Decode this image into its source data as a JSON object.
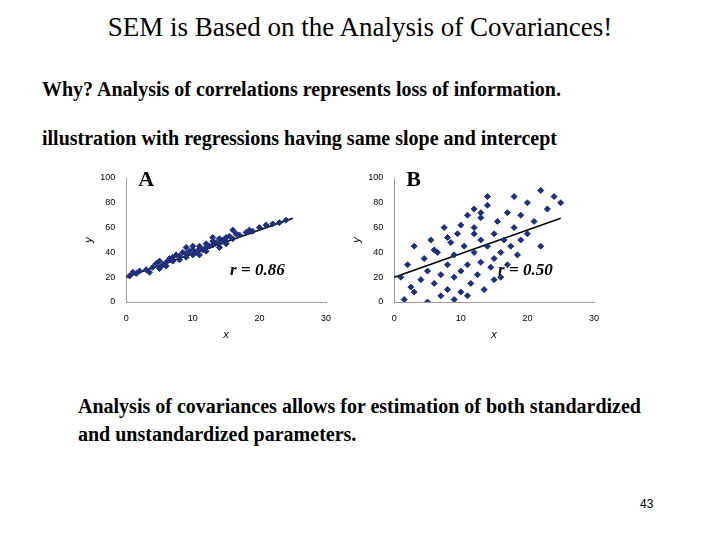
{
  "slide": {
    "title": "SEM is Based on the Analysis of Covariances!",
    "lines": [
      "Why?   Analysis of correlations represents loss of information.",
      "illustration with regressions having same slope and intercept"
    ],
    "note": "Analysis of covariances allows for estimation of both standardized and unstandardized parameters.",
    "page": "43"
  },
  "chart_data": [
    {
      "type": "scatter",
      "title": "A",
      "annotation": "r = 0.86",
      "xlabel": "x",
      "ylabel": "y",
      "xlim": [
        0,
        30
      ],
      "ylim": [
        0,
        100
      ],
      "xticks": [
        0,
        10,
        20,
        30
      ],
      "yticks": [
        0,
        20,
        40,
        60,
        80,
        100
      ],
      "grid": false,
      "series": [
        {
          "type": "scatter",
          "marker": "diamond",
          "color": "#1f2f7a",
          "x": [
            0.5,
            1,
            1.5,
            2,
            3,
            4,
            4.5,
            5,
            5,
            5.5,
            6,
            6.5,
            7,
            7,
            7.5,
            8,
            8,
            8.5,
            9,
            9,
            9.5,
            10,
            10,
            10.5,
            11,
            11,
            11.5,
            12,
            12,
            12.5,
            13,
            13,
            13.5,
            14,
            14,
            14.5,
            15,
            15,
            15.5,
            16,
            16.5,
            17,
            18,
            18.5,
            19,
            20,
            21,
            22,
            23,
            24,
            3.5,
            6,
            10,
            12,
            13,
            11,
            9,
            14,
            16,
            15
          ],
          "values": [
            21,
            24,
            23,
            25,
            26,
            28,
            31,
            27,
            33,
            30,
            32,
            35,
            33,
            36,
            38,
            34,
            37,
            40,
            36,
            39,
            41,
            38,
            42,
            40,
            43,
            45,
            42,
            44,
            47,
            45,
            46,
            49,
            48,
            47,
            51,
            50,
            52,
            49,
            53,
            51,
            55,
            54,
            56,
            58,
            57,
            60,
            62,
            63,
            64,
            66,
            24,
            29,
            45,
            41,
            52,
            38,
            44,
            44,
            58,
            47
          ]
        },
        {
          "type": "line",
          "line_style": "solid",
          "color": "#000000",
          "x": [
            0,
            25
          ],
          "values": [
            20,
            67.5
          ]
        }
      ]
    },
    {
      "type": "scatter",
      "title": "B",
      "annotation": "r = 0.50",
      "xlabel": "x",
      "ylabel": "y",
      "xlim": [
        0,
        30
      ],
      "ylim": [
        0,
        100
      ],
      "xticks": [
        0,
        10,
        20,
        30
      ],
      "yticks": [
        0,
        20,
        40,
        60,
        80,
        100
      ],
      "grid": false,
      "series": [
        {
          "type": "scatter",
          "marker": "diamond",
          "color": "#1f2f7a",
          "x": [
            1,
            1.5,
            2,
            2.5,
            3,
            3,
            4,
            4.5,
            5,
            5,
            5.5,
            6,
            6.5,
            7,
            7,
            7.5,
            8,
            8,
            8.5,
            9,
            9,
            9.5,
            10,
            10,
            10.5,
            11,
            11,
            11.5,
            12,
            12,
            12.5,
            12,
            13,
            13,
            13,
            13.5,
            14,
            14,
            14.5,
            15,
            15,
            15.5,
            16,
            16,
            16.5,
            17,
            17,
            17.5,
            18,
            18,
            18.5,
            19,
            19,
            20,
            20,
            21,
            22,
            22,
            23,
            24,
            25,
            14,
            13,
            12,
            10,
            8,
            6,
            15,
            11,
            9
          ],
          "values": [
            20,
            2,
            30,
            12,
            8,
            45,
            18,
            35,
            0,
            25,
            50,
            15,
            40,
            5,
            22,
            60,
            30,
            10,
            48,
            20,
            38,
            55,
            25,
            8,
            45,
            30,
            70,
            15,
            40,
            60,
            22,
            75,
            50,
            32,
            68,
            10,
            45,
            78,
            28,
            55,
            35,
            65,
            40,
            20,
            50,
            30,
            72,
            45,
            60,
            85,
            38,
            70,
            50,
            55,
            80,
            65,
            90,
            45,
            75,
            85,
            80,
            85,
            72,
            55,
            62,
            52,
            42,
            18,
            5,
            2
          ]
        },
        {
          "type": "line",
          "line_style": "solid",
          "color": "#000000",
          "x": [
            0,
            25
          ],
          "values": [
            20,
            67.5
          ]
        }
      ]
    }
  ]
}
